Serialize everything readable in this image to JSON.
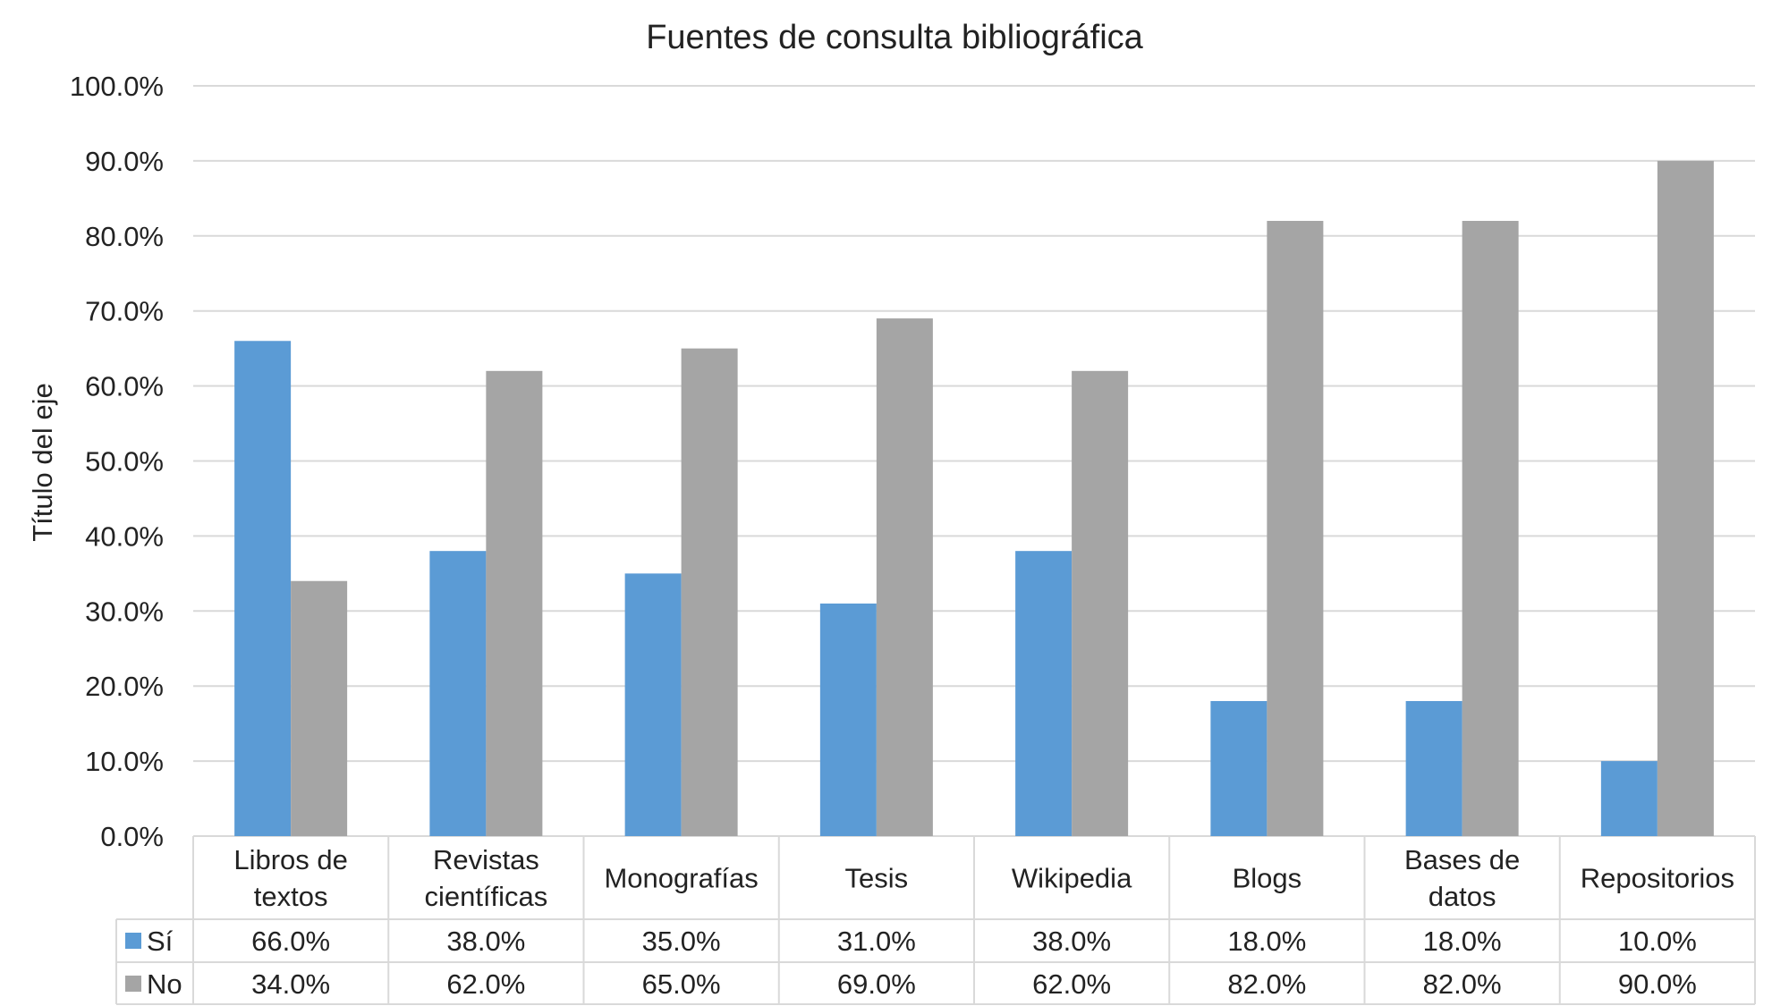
{
  "chart_data": {
    "type": "bar",
    "title": "Fuentes de consulta bibliográfica",
    "ylabel": "Título del eje",
    "xlabel": "",
    "ylim": [
      0,
      100
    ],
    "yticks": [
      "0.0%",
      "10.0%",
      "20.0%",
      "30.0%",
      "40.0%",
      "50.0%",
      "60.0%",
      "70.0%",
      "80.0%",
      "90.0%",
      "100.0%"
    ],
    "grid": true,
    "legend": "data-table",
    "categories": [
      [
        "Libros de",
        "textos"
      ],
      [
        "Revistas",
        "científicas"
      ],
      [
        "Monografías"
      ],
      [
        "Tesis"
      ],
      [
        "Wikipedia"
      ],
      [
        "Blogs"
      ],
      [
        "Bases de",
        "datos"
      ],
      [
        "Repositorios"
      ]
    ],
    "series": [
      {
        "name": "Sí",
        "color": "#5b9bd5",
        "values": [
          66,
          38,
          35,
          31,
          38,
          18,
          18,
          10
        ],
        "labels": [
          "66.0%",
          "38.0%",
          "35.0%",
          "31.0%",
          "38.0%",
          "18.0%",
          "18.0%",
          "10.0%"
        ]
      },
      {
        "name": "No",
        "color": "#a5a5a5",
        "values": [
          34,
          62,
          65,
          69,
          62,
          82,
          82,
          90
        ],
        "labels": [
          "34.0%",
          "62.0%",
          "65.0%",
          "69.0%",
          "62.0%",
          "82.0%",
          "82.0%",
          "90.0%"
        ]
      }
    ]
  }
}
